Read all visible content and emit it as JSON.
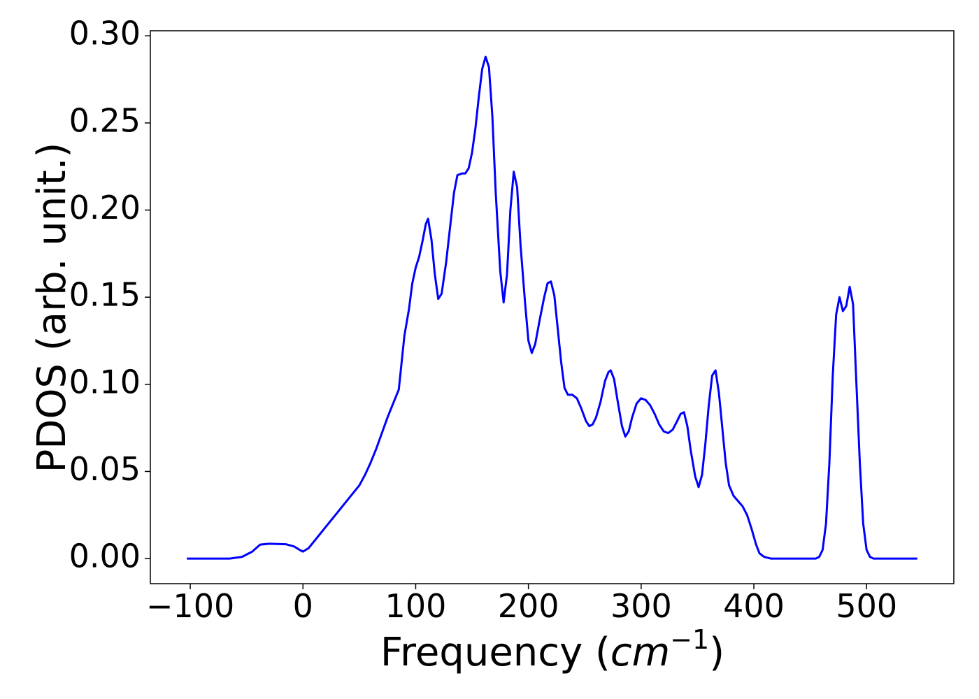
{
  "chart_data": {
    "type": "line",
    "ylabel": "PDOS (arb. unit.)",
    "xlabel": [
      "Frequency (",
      "cm",
      "−1",
      ")"
    ],
    "xlim": [
      -135.4,
      577.4
    ],
    "ylim": [
      -0.0144,
      0.3029
    ],
    "xticks": [
      {
        "value": -100,
        "label": "−100"
      },
      0,
      100,
      200,
      300,
      400,
      500
    ],
    "yticks": [
      {
        "value": 0,
        "label": "0.00"
      },
      {
        "value": 0.05,
        "label": "0.05"
      },
      {
        "value": 0.1,
        "label": "0.10"
      },
      {
        "value": 0.15,
        "label": "0.15"
      },
      {
        "value": 0.2,
        "label": "0.20"
      },
      {
        "value": 0.25,
        "label": "0.25"
      },
      {
        "value": 0.3,
        "label": "0.30"
      }
    ],
    "series": [
      {
        "color": "#0000ff",
        "x": [
          -103,
          -65,
          -54,
          -45,
          -38,
          -30,
          -15,
          -8,
          -3,
          0,
          5,
          10,
          20,
          30,
          40,
          50,
          55,
          60,
          65,
          70,
          75,
          80,
          85,
          90,
          94,
          97,
          100,
          103,
          106,
          109,
          111,
          114,
          117,
          120,
          123,
          127,
          131,
          134,
          137,
          141,
          144,
          147,
          150,
          153,
          156,
          159,
          162,
          165,
          168,
          171,
          175,
          178,
          181,
          184,
          187,
          190,
          193,
          197,
          200,
          203,
          206,
          210,
          214,
          217,
          220,
          223,
          226,
          229,
          232,
          235,
          239,
          243,
          247,
          251,
          254,
          257,
          260,
          264,
          268,
          271,
          273,
          276,
          279,
          283,
          286,
          289,
          292,
          296,
          300,
          304,
          308,
          312,
          316,
          320,
          324,
          328,
          332,
          335,
          338,
          341,
          344,
          348,
          351,
          354,
          357,
          360,
          363,
          366,
          369,
          372,
          375,
          378,
          382,
          386,
          390,
          394,
          398,
          402,
          405,
          409,
          415,
          455,
          458,
          461,
          464,
          467,
          470,
          473,
          476,
          479,
          482,
          485,
          488,
          491,
          494,
          497,
          500,
          503,
          506,
          545
        ],
        "values": [
          0,
          0,
          0.001,
          0.004,
          0.008,
          0.0085,
          0.0082,
          0.007,
          0.005,
          0.004,
          0.006,
          0.01,
          0.018,
          0.026,
          0.034,
          0.042,
          0.048,
          0.055,
          0.063,
          0.072,
          0.081,
          0.089,
          0.097,
          0.128,
          0.143,
          0.158,
          0.167,
          0.173,
          0.182,
          0.192,
          0.195,
          0.183,
          0.163,
          0.149,
          0.152,
          0.17,
          0.193,
          0.21,
          0.22,
          0.221,
          0.221,
          0.224,
          0.233,
          0.247,
          0.265,
          0.281,
          0.288,
          0.282,
          0.254,
          0.21,
          0.165,
          0.147,
          0.163,
          0.2,
          0.222,
          0.213,
          0.18,
          0.147,
          0.125,
          0.118,
          0.123,
          0.137,
          0.15,
          0.158,
          0.159,
          0.151,
          0.132,
          0.113,
          0.098,
          0.094,
          0.094,
          0.092,
          0.086,
          0.079,
          0.076,
          0.077,
          0.081,
          0.09,
          0.102,
          0.107,
          0.108,
          0.103,
          0.091,
          0.076,
          0.07,
          0.073,
          0.081,
          0.089,
          0.092,
          0.091,
          0.088,
          0.083,
          0.077,
          0.073,
          0.072,
          0.074,
          0.079,
          0.083,
          0.084,
          0.076,
          0.062,
          0.047,
          0.041,
          0.048,
          0.066,
          0.088,
          0.105,
          0.108,
          0.095,
          0.075,
          0.055,
          0.042,
          0.036,
          0.033,
          0.03,
          0.025,
          0.017,
          0.008,
          0.003,
          0.001,
          0,
          0,
          0.001,
          0.005,
          0.02,
          0.055,
          0.105,
          0.14,
          0.15,
          0.142,
          0.145,
          0.156,
          0.146,
          0.1,
          0.055,
          0.02,
          0.005,
          0.001,
          0,
          0
        ]
      }
    ]
  }
}
